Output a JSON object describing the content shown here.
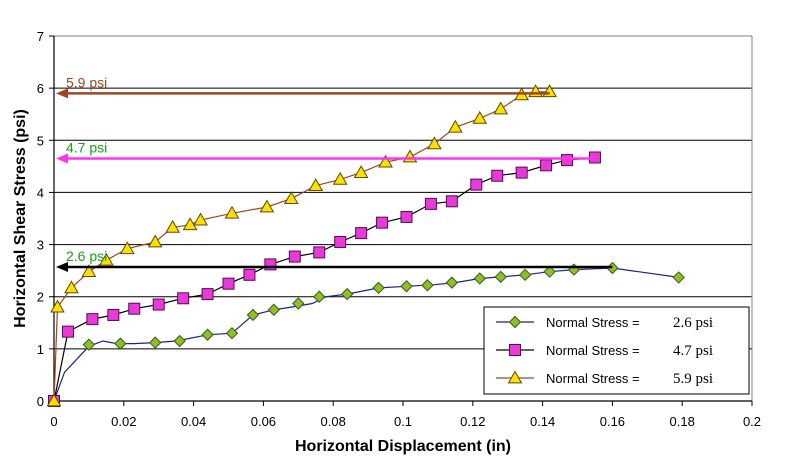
{
  "chart_data": {
    "type": "line",
    "xlabel": "Horizontal Displacement (in)",
    "ylabel": "Horizontal Shear Stress (psi)",
    "xlim": [
      0,
      0.2
    ],
    "ylim": [
      0,
      7
    ],
    "xticks": [
      "0",
      "0.02",
      "0.04",
      "0.06",
      "0.08",
      "0.1",
      "0.12",
      "0.14",
      "0.16",
      "0.18",
      "0.2"
    ],
    "yticks": [
      "0",
      "1",
      "2",
      "3",
      "4",
      "5",
      "6",
      "7"
    ],
    "grid": "horizontal",
    "legend_position": "bottom-right",
    "series": [
      {
        "name_prefix": "Normal Stress =",
        "name_value": "2.6 psi",
        "marker": "diamond",
        "line_color": "#1f1f8f",
        "marker_fill": "#8cbf2a",
        "marker_stroke": "#3e5a10",
        "x": [
          0,
          0.003,
          0.01,
          0.014,
          0.018,
          0.023,
          0.029,
          0.035,
          0.044,
          0.051,
          0.057,
          0.063,
          0.068,
          0.074,
          0.078,
          0.084,
          0.093,
          0.101,
          0.109,
          0.115,
          0.122,
          0.128,
          0.135,
          0.142,
          0.149,
          0.16,
          0.179
        ],
        "y": [
          0,
          0.55,
          1.05,
          1.15,
          1.1,
          1.1,
          1.12,
          1.15,
          1.27,
          1.3,
          1.65,
          1.75,
          1.8,
          1.87,
          2.0,
          2.05,
          2.17,
          2.2,
          2.23,
          2.27,
          2.35,
          2.38,
          2.42,
          2.48,
          2.52,
          2.55,
          2.37
        ],
        "markers_x": [
          0,
          0.01,
          0.019,
          0.029,
          0.036,
          0.044,
          0.051,
          0.057,
          0.063,
          0.07,
          0.076,
          0.084,
          0.093,
          0.101,
          0.107,
          0.114,
          0.122,
          0.128,
          0.135,
          0.142,
          0.149,
          0.16,
          0.179
        ],
        "markers_y": [
          0,
          1.08,
          1.1,
          1.12,
          1.15,
          1.27,
          1.3,
          1.65,
          1.75,
          1.87,
          2.0,
          2.05,
          2.17,
          2.2,
          2.22,
          2.27,
          2.35,
          2.38,
          2.42,
          2.48,
          2.52,
          2.55,
          2.37
        ]
      },
      {
        "name_prefix": "Normal Stress =",
        "name_value": "4.7 psi",
        "marker": "square",
        "line_color": "#000000",
        "marker_fill": "#e83ad8",
        "marker_stroke": "#5a0a50",
        "x": [
          0,
          0.004,
          0.011,
          0.017,
          0.023,
          0.03,
          0.037,
          0.044,
          0.05,
          0.056,
          0.062,
          0.069,
          0.076,
          0.082,
          0.088,
          0.094,
          0.101,
          0.108,
          0.114,
          0.121,
          0.127,
          0.134,
          0.141,
          0.147,
          0.155
        ],
        "y": [
          0,
          1.33,
          1.57,
          1.65,
          1.77,
          1.85,
          1.97,
          2.05,
          2.25,
          2.42,
          2.62,
          2.77,
          2.85,
          3.05,
          3.22,
          3.42,
          3.53,
          3.78,
          3.83,
          4.15,
          4.32,
          4.38,
          4.52,
          4.62,
          4.67
        ]
      },
      {
        "name_prefix": "Normal Stress =",
        "name_value": "5.9 psi",
        "marker": "triangle",
        "line_color": "#a0461e",
        "marker_fill": "#ffe000",
        "marker_stroke": "#5a4a00",
        "x": [
          0,
          0.001,
          0.005,
          0.01,
          0.015,
          0.021,
          0.029,
          0.034,
          0.039,
          0.042,
          0.051,
          0.061,
          0.068,
          0.075,
          0.082,
          0.088,
          0.095,
          0.102,
          0.109,
          0.115,
          0.122,
          0.128,
          0.134,
          0.138,
          0.142
        ],
        "y": [
          0,
          1.8,
          2.17,
          2.48,
          2.7,
          2.92,
          3.05,
          3.33,
          3.38,
          3.47,
          3.6,
          3.72,
          3.88,
          4.13,
          4.25,
          4.38,
          4.58,
          4.68,
          4.93,
          5.25,
          5.42,
          5.6,
          5.87,
          5.93,
          5.93
        ]
      }
    ],
    "annotations": [
      {
        "text": "5.9 psi",
        "value": 5.9,
        "from_x": 0.142,
        "to_x": 0,
        "color": "#a0461e"
      },
      {
        "text": "4.7 psi",
        "value": 4.65,
        "from_x": 0.155,
        "to_x": 0,
        "color": "#ff33ee",
        "text_color": "#18a018"
      },
      {
        "text": "2.6 psi",
        "value": 2.57,
        "from_x": 0.16,
        "to_x": 0,
        "color": "#000000",
        "text_color": "#18a018"
      }
    ]
  }
}
